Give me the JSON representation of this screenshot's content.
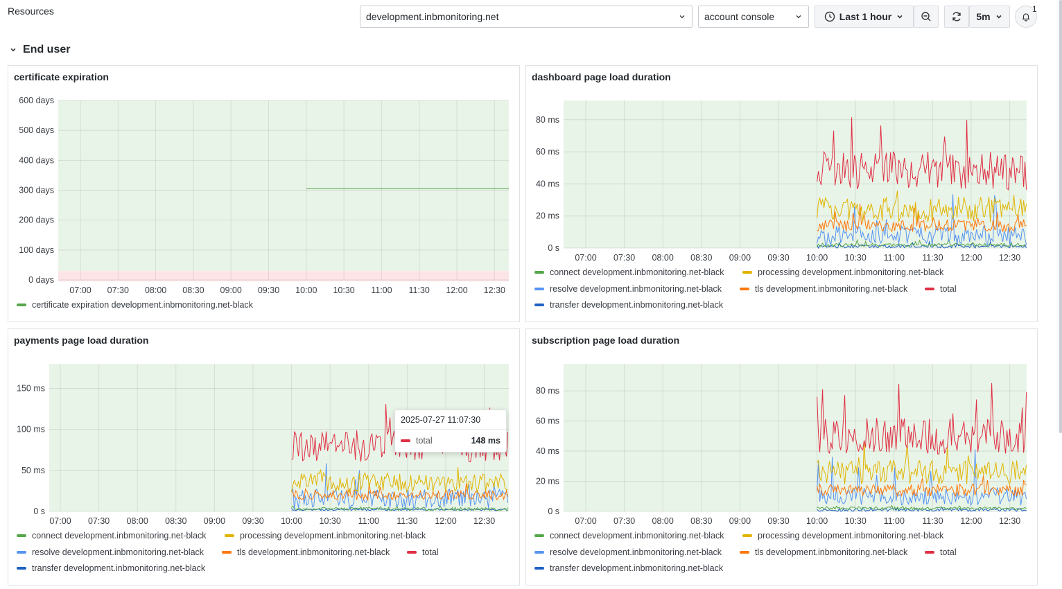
{
  "header": {
    "resources_label": "Resources",
    "host_select": "development.inbmonitoring.net",
    "app_select": "account console",
    "time_range": "Last 1 hour",
    "refresh_interval": "5m",
    "notification_count": "1"
  },
  "section": {
    "title": "End user"
  },
  "icons": {
    "chevron": "chevron-down-icon",
    "clock": "clock-icon",
    "zoom_out": "zoom-out-icon",
    "refresh": "refresh-icon",
    "bell": "bell-icon"
  },
  "colors": {
    "plot_bg": "#e9f4e8",
    "threshold_red": "#fde5e7",
    "connect": "#56a64b",
    "processing": "#e0b400",
    "resolve": "#5794f2",
    "tls": "#ff780a",
    "total": "#e02f44",
    "transfer": "#1f60c4",
    "cert": "#56a64b"
  },
  "panels": [
    {
      "title": "certificate expiration",
      "legend": [
        {
          "name": "certificate expiration development.inbmonitoring.net-black",
          "color": "#56a64b"
        }
      ]
    },
    {
      "title": "dashboard page load duration",
      "legend": [
        {
          "name": "connect development.inbmonitoring.net-black",
          "color": "#56a64b"
        },
        {
          "name": "processing development.inbmonitoring.net-black",
          "color": "#e0b400"
        },
        {
          "name": "resolve development.inbmonitoring.net-black",
          "color": "#5794f2"
        },
        {
          "name": "tls development.inbmonitoring.net-black",
          "color": "#ff780a"
        },
        {
          "name": "total",
          "color": "#e02f44"
        },
        {
          "name": "transfer development.inbmonitoring.net-black",
          "color": "#1f60c4"
        }
      ]
    },
    {
      "title": "payments page load duration",
      "legend": [
        {
          "name": "connect development.inbmonitoring.net-black",
          "color": "#56a64b"
        },
        {
          "name": "processing development.inbmonitoring.net-black",
          "color": "#e0b400"
        },
        {
          "name": "resolve development.inbmonitoring.net-black",
          "color": "#5794f2"
        },
        {
          "name": "tls development.inbmonitoring.net-black",
          "color": "#ff780a"
        },
        {
          "name": "total",
          "color": "#e02f44"
        },
        {
          "name": "transfer development.inbmonitoring.net-black",
          "color": "#1f60c4"
        }
      ],
      "tooltip": {
        "time": "2025-07-27 11:07:30",
        "series": "total",
        "value": "148 ms",
        "color": "#e02f44"
      }
    },
    {
      "title": "subscription page load duration",
      "legend": [
        {
          "name": "connect development.inbmonitoring.net-black",
          "color": "#56a64b"
        },
        {
          "name": "processing development.inbmonitoring.net-black",
          "color": "#e0b400"
        },
        {
          "name": "resolve development.inbmonitoring.net-black",
          "color": "#5794f2"
        },
        {
          "name": "tls development.inbmonitoring.net-black",
          "color": "#ff780a"
        },
        {
          "name": "total",
          "color": "#e02f44"
        },
        {
          "name": "transfer development.inbmonitoring.net-black",
          "color": "#1f60c4"
        }
      ]
    }
  ],
  "chart_data": [
    {
      "type": "line",
      "title": "certificate expiration",
      "x_ticks": [
        "07:00",
        "07:30",
        "08:00",
        "08:30",
        "09:00",
        "09:30",
        "10:00",
        "10:30",
        "11:00",
        "11:30",
        "12:00",
        "12:30"
      ],
      "y_ticks": [
        "0 days",
        "100 days",
        "200 days",
        "300 days",
        "400 days",
        "500 days",
        "600 days"
      ],
      "ylim": [
        0,
        600
      ],
      "threshold": {
        "below": 30,
        "color": "#fde5e7"
      },
      "series": [
        {
          "name": "certificate expiration development.inbmonitoring.net-black",
          "from": "10:00",
          "to": "12:40",
          "value": 305
        }
      ]
    },
    {
      "type": "line",
      "title": "dashboard page load duration",
      "x_ticks": [
        "07:00",
        "07:30",
        "08:00",
        "08:30",
        "09:00",
        "09:30",
        "10:00",
        "10:30",
        "11:00",
        "11:30",
        "12:00",
        "12:30"
      ],
      "y_ticks": [
        "0 s",
        "20 ms",
        "40 ms",
        "60 ms",
        "80 ms"
      ],
      "ylim": [
        0,
        92
      ],
      "data_start": "10:00",
      "series": [
        {
          "name": "total",
          "typical_ms": 48,
          "spread_ms": 12,
          "peak_ms": 83
        },
        {
          "name": "processing development.inbmonitoring.net-black",
          "typical_ms": 24,
          "spread_ms": 8,
          "peak_ms": 40
        },
        {
          "name": "tls development.inbmonitoring.net-black",
          "typical_ms": 14,
          "spread_ms": 4,
          "peak_ms": 28
        },
        {
          "name": "resolve development.inbmonitoring.net-black",
          "typical_ms": 8,
          "spread_ms": 6,
          "peak_ms": 38
        },
        {
          "name": "connect development.inbmonitoring.net-black",
          "typical_ms": 2,
          "spread_ms": 1,
          "peak_ms": 6
        },
        {
          "name": "transfer development.inbmonitoring.net-black",
          "typical_ms": 1,
          "spread_ms": 1,
          "peak_ms": 4
        }
      ]
    },
    {
      "type": "line",
      "title": "payments page load duration",
      "x_ticks": [
        "07:00",
        "07:30",
        "08:00",
        "08:30",
        "09:00",
        "09:30",
        "10:00",
        "10:30",
        "11:00",
        "11:30",
        "12:00",
        "12:30"
      ],
      "y_ticks": [
        "0 s",
        "50 ms",
        "100 ms",
        "150 ms"
      ],
      "ylim": [
        0,
        180
      ],
      "data_start": "10:00",
      "series": [
        {
          "name": "total",
          "typical_ms": 80,
          "spread_ms": 20,
          "peak_ms": 157
        },
        {
          "name": "processing development.inbmonitoring.net-black",
          "typical_ms": 35,
          "spread_ms": 12,
          "peak_ms": 60
        },
        {
          "name": "tls development.inbmonitoring.net-black",
          "typical_ms": 20,
          "spread_ms": 6,
          "peak_ms": 35
        },
        {
          "name": "resolve development.inbmonitoring.net-black",
          "typical_ms": 15,
          "spread_ms": 12,
          "peak_ms": 70
        },
        {
          "name": "connect development.inbmonitoring.net-black",
          "typical_ms": 3,
          "spread_ms": 2,
          "peak_ms": 8
        },
        {
          "name": "transfer development.inbmonitoring.net-black",
          "typical_ms": 2,
          "spread_ms": 1,
          "peak_ms": 5
        }
      ]
    },
    {
      "type": "line",
      "title": "subscription page load duration",
      "x_ticks": [
        "07:00",
        "07:30",
        "08:00",
        "08:30",
        "09:00",
        "09:30",
        "10:00",
        "10:30",
        "11:00",
        "11:30",
        "12:00",
        "12:30"
      ],
      "y_ticks": [
        "0 s",
        "20 ms",
        "40 ms",
        "60 ms",
        "80 ms"
      ],
      "ylim": [
        0,
        98
      ],
      "data_start": "10:00",
      "series": [
        {
          "name": "total",
          "typical_ms": 50,
          "spread_ms": 12,
          "peak_ms": 88
        },
        {
          "name": "processing development.inbmonitoring.net-black",
          "typical_ms": 26,
          "spread_ms": 8,
          "peak_ms": 48
        },
        {
          "name": "tls development.inbmonitoring.net-black",
          "typical_ms": 14,
          "spread_ms": 4,
          "peak_ms": 24
        },
        {
          "name": "resolve development.inbmonitoring.net-black",
          "typical_ms": 10,
          "spread_ms": 6,
          "peak_ms": 45
        },
        {
          "name": "connect development.inbmonitoring.net-black",
          "typical_ms": 2,
          "spread_ms": 1,
          "peak_ms": 5
        },
        {
          "name": "transfer development.inbmonitoring.net-black",
          "typical_ms": 1,
          "spread_ms": 1,
          "peak_ms": 3
        }
      ]
    }
  ]
}
